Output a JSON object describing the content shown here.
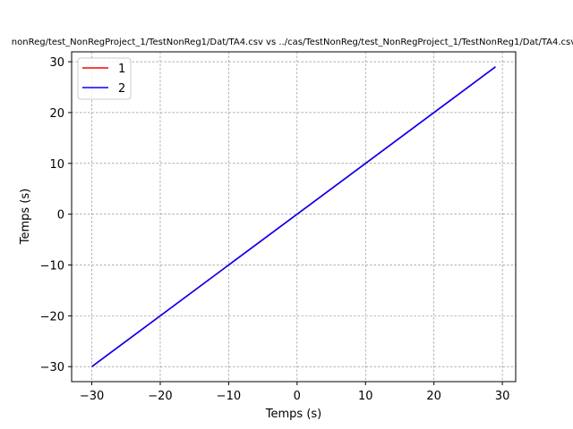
{
  "chart_data": {
    "type": "line",
    "title": "nonReg/test_NonRegProject_1/TestNonReg1/Dat/TA4.csv vs ../cas/TestNonReg/test_NonRegProject_1/TestNonReg1/Dat/TA4.csv",
    "xlabel": "Temps (s)",
    "ylabel": "Temps (s)",
    "xlim": [
      -32.95,
      31.95
    ],
    "ylim": [
      -32.95,
      31.95
    ],
    "xticks": [
      -30,
      -20,
      -10,
      0,
      10,
      20,
      30
    ],
    "yticks": [
      -30,
      -20,
      -10,
      0,
      10,
      20,
      30
    ],
    "xtick_labels": [
      "−30",
      "−20",
      "−10",
      "0",
      "10",
      "20",
      "30"
    ],
    "ytick_labels": [
      "−30",
      "−20",
      "−10",
      "0",
      "10",
      "20",
      "30"
    ],
    "grid": true,
    "legend_position": "top-left",
    "series": [
      {
        "name": "1",
        "color": "#ff0000",
        "x": [
          -30,
          29
        ],
        "y": [
          -30,
          29
        ]
      },
      {
        "name": "2",
        "color": "#0000ff",
        "x": [
          -30,
          29
        ],
        "y": [
          -30,
          29
        ]
      }
    ]
  }
}
